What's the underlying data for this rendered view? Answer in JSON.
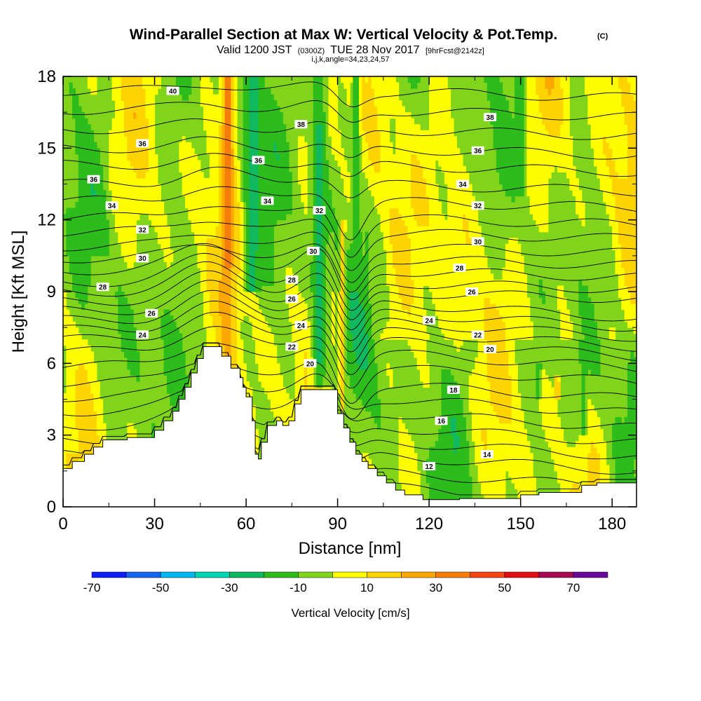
{
  "header": {
    "title_main": "Wind-Parallel Section at Max W: Vertical Velocity & Pot.Temp.",
    "title_mark": "(C)",
    "subtitle_a": "Valid 1200 JST",
    "subtitle_b": "(0300Z)",
    "subtitle_c": "TUE 28 Nov 2017",
    "subtitle_d": "[9hrFcst@2142z]",
    "params": "i,j,k,angle=34,23,24,57"
  },
  "chart_data": {
    "type": "heatmap",
    "xlabel": "Distance [nm]",
    "ylabel": "Height [Kft MSL]",
    "xlim": [
      0,
      188
    ],
    "ylim": [
      0,
      18
    ],
    "xticks": [
      "0",
      "30",
      "60",
      "90",
      "120",
      "150",
      "180"
    ],
    "yticks": [
      "0",
      "3",
      "6",
      "9",
      "12",
      "15",
      "18"
    ],
    "colorbar": {
      "title": "Vertical Velocity [cm/s]",
      "labels": [
        "-70",
        "-50",
        "-30",
        "-10",
        "10",
        "30",
        "50",
        "70"
      ],
      "bin_edges": [
        -70,
        -60,
        -50,
        -40,
        -30,
        -20,
        -10,
        0,
        10,
        20,
        30,
        40,
        50,
        60,
        70,
        80
      ],
      "colors": [
        "#0f1ef5",
        "#1565f0",
        "#00b7f0",
        "#00d6b4",
        "#10b860",
        "#2cbc1c",
        "#80d41a",
        "#fdfd00",
        "#fdd400",
        "#fda800",
        "#f57e0a",
        "#f54616",
        "#e01010",
        "#a80a55",
        "#6a0a9a"
      ]
    },
    "terrain": [
      [
        0,
        1.6
      ],
      [
        1,
        1.6
      ],
      [
        3,
        1.6
      ],
      [
        3,
        1.9
      ],
      [
        7,
        1.9
      ],
      [
        7,
        2.2
      ],
      [
        10,
        2.2
      ],
      [
        10,
        2.5
      ],
      [
        13,
        2.5
      ],
      [
        13,
        2.8
      ],
      [
        21,
        2.8
      ],
      [
        21,
        2.9
      ],
      [
        30,
        2.9
      ],
      [
        30,
        3.2
      ],
      [
        33,
        3.2
      ],
      [
        33,
        3.6
      ],
      [
        36,
        3.6
      ],
      [
        36,
        4.0
      ],
      [
        38,
        4.0
      ],
      [
        38,
        4.5
      ],
      [
        40,
        4.5
      ],
      [
        40,
        5.0
      ],
      [
        42,
        5.0
      ],
      [
        42,
        5.6
      ],
      [
        44,
        5.6
      ],
      [
        44,
        6.2
      ],
      [
        46,
        6.2
      ],
      [
        46,
        6.7
      ],
      [
        52,
        6.7
      ],
      [
        52,
        6.3
      ],
      [
        55,
        6.3
      ],
      [
        55,
        5.8
      ],
      [
        58,
        5.8
      ],
      [
        58,
        5.4
      ],
      [
        59,
        5.4
      ],
      [
        59,
        5.0
      ],
      [
        60,
        5.0
      ],
      [
        60,
        4.6
      ],
      [
        62,
        4.6
      ],
      [
        62,
        3.6
      ],
      [
        63,
        3.6
      ],
      [
        63,
        2.2
      ],
      [
        64,
        2.2
      ],
      [
        64,
        2.0
      ],
      [
        65,
        2.0
      ],
      [
        65,
        2.7
      ],
      [
        67,
        2.7
      ],
      [
        67,
        3.4
      ],
      [
        70,
        3.4
      ],
      [
        70,
        3.6
      ],
      [
        72,
        3.6
      ],
      [
        72,
        3.4
      ],
      [
        74,
        3.4
      ],
      [
        74,
        3.6
      ],
      [
        76,
        3.6
      ],
      [
        76,
        4.3
      ],
      [
        78,
        4.3
      ],
      [
        78,
        4.9
      ],
      [
        90,
        4.9
      ],
      [
        90,
        3.9
      ],
      [
        92,
        3.9
      ],
      [
        92,
        3.3
      ],
      [
        94,
        3.3
      ],
      [
        94,
        2.7
      ],
      [
        96,
        2.7
      ],
      [
        96,
        2.2
      ],
      [
        98,
        2.2
      ],
      [
        98,
        1.9
      ],
      [
        100,
        1.9
      ],
      [
        100,
        1.6
      ],
      [
        103,
        1.6
      ],
      [
        103,
        1.3
      ],
      [
        106,
        1.3
      ],
      [
        106,
        1.0
      ],
      [
        109,
        1.0
      ],
      [
        109,
        0.7
      ],
      [
        112,
        0.7
      ],
      [
        112,
        0.5
      ],
      [
        118,
        0.5
      ],
      [
        118,
        0.3
      ],
      [
        130,
        0.3
      ],
      [
        130,
        0.35
      ],
      [
        150,
        0.35
      ],
      [
        150,
        0.5
      ],
      [
        156,
        0.5
      ],
      [
        156,
        0.6
      ],
      [
        170,
        0.6
      ],
      [
        170,
        0.9
      ],
      [
        175,
        0.9
      ],
      [
        175,
        1.0
      ],
      [
        188,
        1.0
      ]
    ],
    "contours": [
      {
        "theta": 12,
        "base": 0.9
      },
      {
        "theta": 13,
        "base": 1.5
      },
      {
        "theta": 14,
        "base": 2.2
      },
      {
        "theta": 15,
        "base": 2.8
      },
      {
        "theta": 16,
        "base": 3.4
      },
      {
        "theta": 17,
        "base": 4.0
      },
      {
        "theta": 18,
        "base": 4.6
      },
      {
        "theta": 19,
        "base": 5.2
      },
      {
        "theta": 20,
        "base": 5.9
      },
      {
        "theta": 21,
        "base": 6.5
      },
      {
        "theta": 22,
        "base": 7.0
      },
      {
        "theta": 23,
        "base": 7.4
      },
      {
        "theta": 24,
        "base": 7.8
      },
      {
        "theta": 25,
        "base": 8.2
      },
      {
        "theta": 26,
        "base": 8.6
      },
      {
        "theta": 27,
        "base": 9.0
      },
      {
        "theta": 28,
        "base": 9.4
      },
      {
        "theta": 29,
        "base": 9.9
      },
      {
        "theta": 30,
        "base": 10.4
      },
      {
        "theta": 31,
        "base": 10.9
      },
      {
        "theta": 32,
        "base": 11.5
      },
      {
        "theta": 33,
        "base": 12.1
      },
      {
        "theta": 34,
        "base": 12.8
      },
      {
        "theta": 35,
        "base": 13.5
      },
      {
        "theta": 36,
        "base": 14.3
      },
      {
        "theta": 37,
        "base": 15.0
      },
      {
        "theta": 38,
        "base": 15.8
      },
      {
        "theta": 39,
        "base": 16.6
      },
      {
        "theta": 40,
        "base": 17.4
      }
    ],
    "contour_labels": [
      {
        "text": "40",
        "x": 36,
        "y": 17.4
      },
      {
        "text": "38",
        "x": 78,
        "y": 16.0
      },
      {
        "text": "38",
        "x": 140,
        "y": 16.3
      },
      {
        "text": "36",
        "x": 26,
        "y": 15.2
      },
      {
        "text": "36",
        "x": 64,
        "y": 14.5
      },
      {
        "text": "36",
        "x": 136,
        "y": 14.9
      },
      {
        "text": "36",
        "x": 10,
        "y": 13.7
      },
      {
        "text": "34",
        "x": 131,
        "y": 13.5
      },
      {
        "text": "34",
        "x": 16,
        "y": 12.6
      },
      {
        "text": "34",
        "x": 67,
        "y": 12.8
      },
      {
        "text": "32",
        "x": 84,
        "y": 12.4
      },
      {
        "text": "32",
        "x": 136,
        "y": 12.6
      },
      {
        "text": "32",
        "x": 26,
        "y": 11.6
      },
      {
        "text": "30",
        "x": 136,
        "y": 11.1
      },
      {
        "text": "30",
        "x": 26,
        "y": 10.4
      },
      {
        "text": "30",
        "x": 82,
        "y": 10.7
      },
      {
        "text": "28",
        "x": 130,
        "y": 10.0
      },
      {
        "text": "28",
        "x": 13,
        "y": 9.2
      },
      {
        "text": "28",
        "x": 75,
        "y": 9.5
      },
      {
        "text": "26",
        "x": 134,
        "y": 9.0
      },
      {
        "text": "26",
        "x": 29,
        "y": 8.1
      },
      {
        "text": "26",
        "x": 75,
        "y": 8.7
      },
      {
        "text": "24",
        "x": 120,
        "y": 7.8
      },
      {
        "text": "24",
        "x": 78,
        "y": 7.6
      },
      {
        "text": "24",
        "x": 26,
        "y": 7.2
      },
      {
        "text": "22",
        "x": 136,
        "y": 7.2
      },
      {
        "text": "22",
        "x": 75,
        "y": 6.7
      },
      {
        "text": "20",
        "x": 140,
        "y": 6.6
      },
      {
        "text": "20",
        "x": 81,
        "y": 6.0
      },
      {
        "text": "18",
        "x": 128,
        "y": 4.9
      },
      {
        "text": "16",
        "x": 124,
        "y": 3.6
      },
      {
        "text": "14",
        "x": 139,
        "y": 2.2
      },
      {
        "text": "12",
        "x": 120,
        "y": 1.7
      }
    ],
    "velocity_features": [
      {
        "x0": 50,
        "x1": 58,
        "y0": 4.0,
        "y1": 18,
        "w": 25
      },
      {
        "x0": 52,
        "x1": 56,
        "y0": 10,
        "y1": 18,
        "w": 35
      },
      {
        "x0": 58,
        "x1": 66,
        "y0": 9,
        "y1": 18,
        "w": -25
      },
      {
        "x0": 61,
        "x1": 64,
        "y0": 13,
        "y1": 18,
        "w": -30
      },
      {
        "x0": 80,
        "x1": 88,
        "y0": 5.0,
        "y1": 18,
        "w": -20
      },
      {
        "x0": 82,
        "x1": 86,
        "y0": 6,
        "y1": 16,
        "w": -30
      },
      {
        "x0": 90,
        "x1": 93,
        "y0": 4,
        "y1": 12,
        "w": 15
      },
      {
        "x0": 94,
        "x1": 98,
        "y0": 8,
        "y1": 18,
        "w": -20
      },
      {
        "x0": 147,
        "x1": 152,
        "y0": 13,
        "y1": 18,
        "w": -20
      },
      {
        "x0": 169,
        "x1": 172,
        "y0": 3,
        "y1": 7,
        "w": -20
      },
      {
        "x0": 155,
        "x1": 157,
        "y0": 4.5,
        "y1": 6,
        "w": -20
      },
      {
        "x0": 161,
        "x1": 163,
        "y0": 4.5,
        "y1": 5.5,
        "w": 25
      }
    ]
  }
}
